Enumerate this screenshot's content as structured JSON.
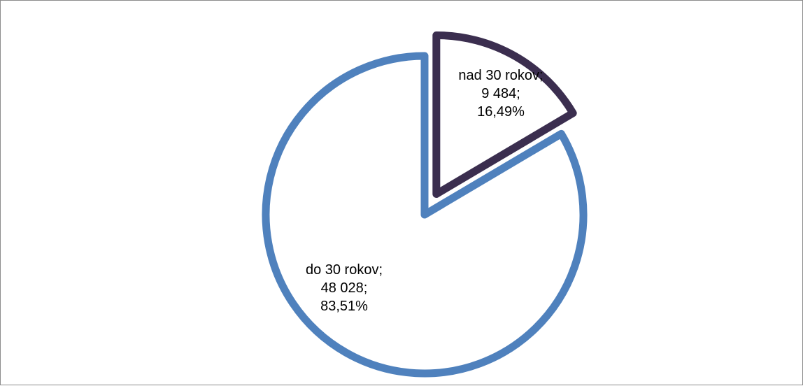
{
  "chart_data": {
    "type": "pie",
    "title": "",
    "exploded_slice": "nad 30 rokov",
    "legend": "none",
    "slices": [
      {
        "name": "nad 30 rokov",
        "value": 9484,
        "percent": 16.49,
        "label_lines": [
          "nad 30 rokov;",
          "9 484;",
          "16,49%"
        ],
        "stroke_color": "#3B2E4F",
        "fill_color": "#ffffff"
      },
      {
        "name": "do 30 rokov",
        "value": 48028,
        "percent": 83.51,
        "label_lines": [
          "do 30 rokov;",
          "48 028;",
          "83,51%"
        ],
        "stroke_color": "#4F81BD",
        "fill_color": "#ffffff"
      }
    ]
  }
}
